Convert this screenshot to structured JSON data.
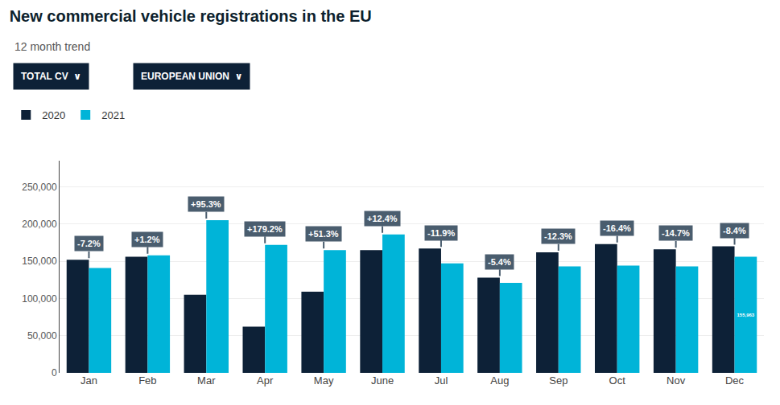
{
  "chart_data": {
    "type": "bar",
    "title": "New commercial vehicle registrations in the EU",
    "subtitle": "12 month trend",
    "buttons": [
      "TOTAL CV  ∨",
      "EUROPEAN UNION  ∨"
    ],
    "categories": [
      "Jan",
      "Feb",
      "Mar",
      "Apr",
      "May",
      "June",
      "Jul",
      "Aug",
      "Sep",
      "Oct",
      "Nov",
      "Dec"
    ],
    "series": [
      {
        "name": "2020",
        "color": "#0d2137",
        "values": [
          152000,
          156000,
          105000,
          62000,
          109000,
          165000,
          167000,
          128000,
          162000,
          173000,
          166000,
          170000
        ]
      },
      {
        "name": "2021",
        "color": "#00b4d8",
        "values": [
          141000,
          158000,
          205000,
          172000,
          165000,
          186000,
          147000,
          121000,
          143000,
          144000,
          143000,
          155963
        ],
        "value_labels": [
          null,
          null,
          null,
          null,
          null,
          null,
          null,
          null,
          null,
          null,
          null,
          "155,963"
        ]
      }
    ],
    "annotations": [
      {
        "category": "Jan",
        "text": "-7.2%"
      },
      {
        "category": "Feb",
        "text": "+1.2%"
      },
      {
        "category": "Mar",
        "text": "+95.3%"
      },
      {
        "category": "Apr",
        "text": "+179.2%"
      },
      {
        "category": "May",
        "text": "+51.3%"
      },
      {
        "category": "June",
        "text": "+12.4%"
      },
      {
        "category": "Jul",
        "text": "-11.9%"
      },
      {
        "category": "Aug",
        "text": "-5.4%"
      },
      {
        "category": "Sep",
        "text": "-12.3%"
      },
      {
        "category": "Oct",
        "text": "-16.4%"
      },
      {
        "category": "Nov",
        "text": "-14.7%"
      },
      {
        "category": "Dec",
        "text": "-8.4%"
      }
    ],
    "ylim": [
      0,
      285000
    ],
    "yticks": [
      0,
      {
        "value": 50000,
        "label": "50,000"
      },
      {
        "value": 100000,
        "label": "100,000"
      },
      {
        "value": 150000,
        "label": "150,000"
      },
      {
        "value": 200000,
        "label": "200,000"
      },
      {
        "value": 250000,
        "label": "250,000"
      }
    ],
    "grid": true,
    "legend": "upper left"
  }
}
